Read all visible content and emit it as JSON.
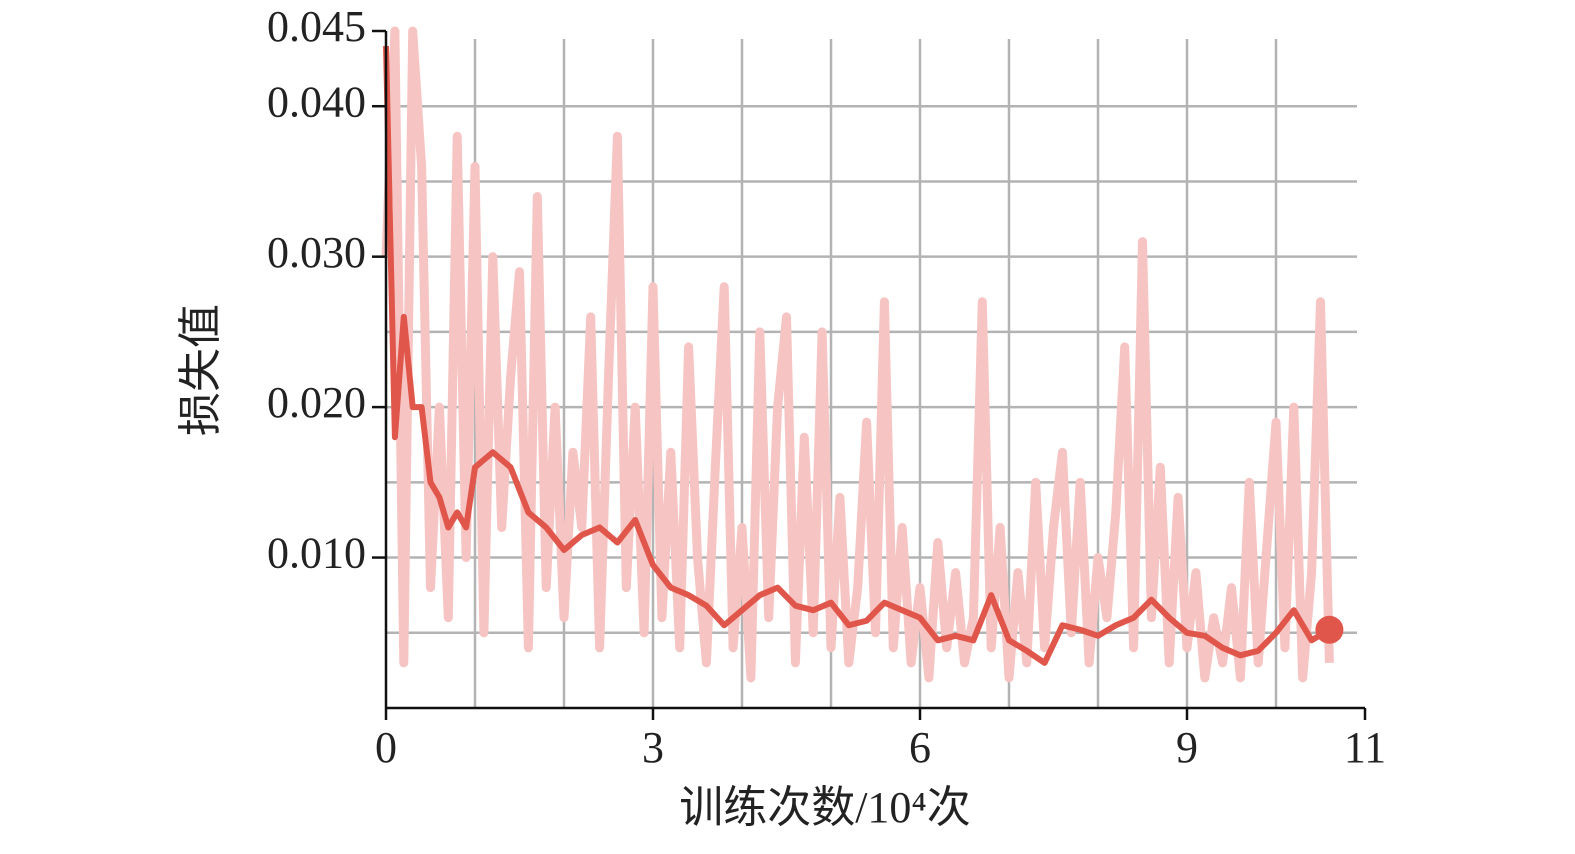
{
  "chart_data": {
    "type": "line",
    "xlabel": "训练次数/10⁴次",
    "ylabel": "损失值",
    "xlim": [
      0,
      11
    ],
    "xticks": [
      0,
      3,
      6,
      9,
      11
    ],
    "xminor": [
      1,
      2,
      4,
      5,
      7,
      8,
      10
    ],
    "ylim": [
      0,
      0.045
    ],
    "yticks": [
      {
        "value": 0.01,
        "label": "0.010"
      },
      {
        "value": 0.02,
        "label": "0.020"
      },
      {
        "value": 0.03,
        "label": "0.030"
      },
      {
        "value": 0.04,
        "label": "0.040"
      },
      0.045
    ],
    "yminor": [
      0.005,
      0.015,
      0.025,
      0.035
    ],
    "grid": true,
    "series": [
      {
        "color": "#f6c5c3",
        "x": [
          0,
          0.1,
          0.2,
          0.3,
          0.4,
          0.5,
          0.6,
          0.7,
          0.8,
          0.9,
          1.0,
          1.1,
          1.2,
          1.3,
          1.4,
          1.5,
          1.6,
          1.7,
          1.8,
          1.9,
          2.0,
          2.1,
          2.2,
          2.3,
          2.4,
          2.5,
          2.6,
          2.7,
          2.8,
          2.9,
          3.0,
          3.1,
          3.2,
          3.3,
          3.4,
          3.5,
          3.6,
          3.7,
          3.8,
          3.9,
          4.0,
          4.1,
          4.2,
          4.3,
          4.4,
          4.5,
          4.6,
          4.7,
          4.8,
          4.9,
          5.0,
          5.1,
          5.2,
          5.3,
          5.4,
          5.5,
          5.6,
          5.7,
          5.8,
          5.9,
          6.0,
          6.1,
          6.2,
          6.3,
          6.4,
          6.5,
          6.6,
          6.7,
          6.8,
          6.9,
          7.0,
          7.1,
          7.2,
          7.3,
          7.4,
          7.5,
          7.6,
          7.7,
          7.8,
          7.9,
          8.0,
          8.1,
          8.2,
          8.3,
          8.4,
          8.5,
          8.6,
          8.7,
          8.8,
          8.9,
          9.0,
          9.1,
          9.2,
          9.3,
          9.4,
          9.5,
          9.6,
          9.7,
          9.8,
          9.9,
          10.0,
          10.1,
          10.2,
          10.3,
          10.4,
          10.5,
          10.6
        ],
        "values": [
          0.03,
          0.045,
          0.003,
          0.045,
          0.036,
          0.008,
          0.02,
          0.006,
          0.038,
          0.01,
          0.036,
          0.005,
          0.03,
          0.012,
          0.022,
          0.029,
          0.004,
          0.034,
          0.008,
          0.02,
          0.006,
          0.017,
          0.012,
          0.026,
          0.004,
          0.022,
          0.038,
          0.008,
          0.02,
          0.005,
          0.028,
          0.006,
          0.017,
          0.004,
          0.024,
          0.01,
          0.003,
          0.016,
          0.028,
          0.004,
          0.012,
          0.002,
          0.025,
          0.006,
          0.02,
          0.026,
          0.003,
          0.018,
          0.005,
          0.025,
          0.004,
          0.014,
          0.003,
          0.008,
          0.019,
          0.005,
          0.027,
          0.004,
          0.012,
          0.003,
          0.008,
          0.002,
          0.011,
          0.004,
          0.009,
          0.003,
          0.006,
          0.027,
          0.004,
          0.012,
          0.002,
          0.009,
          0.003,
          0.015,
          0.004,
          0.012,
          0.017,
          0.005,
          0.015,
          0.003,
          0.01,
          0.006,
          0.013,
          0.024,
          0.004,
          0.031,
          0.006,
          0.016,
          0.003,
          0.014,
          0.004,
          0.009,
          0.002,
          0.006,
          0.003,
          0.008,
          0.002,
          0.015,
          0.003,
          0.011,
          0.019,
          0.004,
          0.02,
          0.002,
          0.009,
          0.027,
          0.003
        ]
      },
      {
        "color": "#e0564b",
        "x": [
          0,
          0.1,
          0.2,
          0.3,
          0.4,
          0.5,
          0.6,
          0.7,
          0.8,
          0.9,
          1.0,
          1.2,
          1.4,
          1.6,
          1.8,
          2.0,
          2.2,
          2.4,
          2.6,
          2.8,
          3.0,
          3.2,
          3.4,
          3.6,
          3.8,
          4.0,
          4.2,
          4.4,
          4.6,
          4.8,
          5.0,
          5.2,
          5.4,
          5.6,
          5.8,
          6.0,
          6.2,
          6.4,
          6.6,
          6.8,
          7.0,
          7.2,
          7.4,
          7.6,
          7.8,
          8.0,
          8.2,
          8.4,
          8.6,
          8.8,
          9.0,
          9.2,
          9.4,
          9.6,
          9.8,
          10.0,
          10.2,
          10.4,
          10.6
        ],
        "values": [
          0.044,
          0.018,
          0.026,
          0.02,
          0.02,
          0.015,
          0.014,
          0.012,
          0.013,
          0.012,
          0.016,
          0.017,
          0.016,
          0.013,
          0.012,
          0.0105,
          0.0115,
          0.012,
          0.011,
          0.0125,
          0.0095,
          0.008,
          0.0075,
          0.0068,
          0.0055,
          0.0065,
          0.0075,
          0.008,
          0.0068,
          0.0065,
          0.007,
          0.0055,
          0.0058,
          0.007,
          0.0065,
          0.006,
          0.0045,
          0.0048,
          0.0045,
          0.0075,
          0.0045,
          0.0038,
          0.003,
          0.0055,
          0.0052,
          0.0048,
          0.0055,
          0.006,
          0.0072,
          0.006,
          0.005,
          0.0048,
          0.004,
          0.0035,
          0.0038,
          0.005,
          0.0065,
          0.0045,
          0.0052
        ]
      }
    ]
  }
}
